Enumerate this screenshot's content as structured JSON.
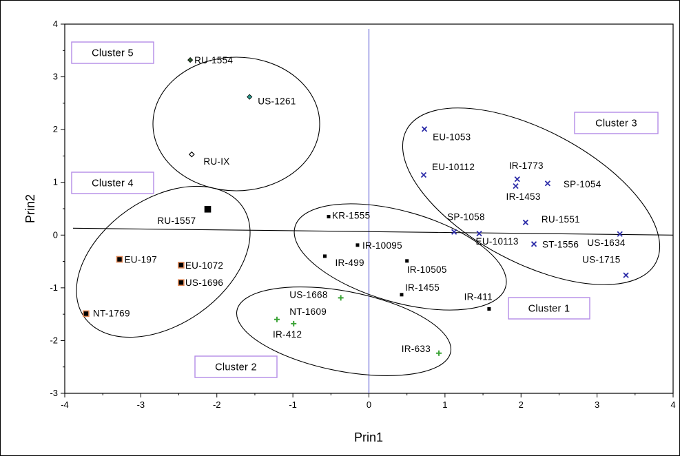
{
  "chart_data": {
    "type": "scatter",
    "title": "",
    "xlabel": "Prin1",
    "ylabel": "Prin2",
    "xlim": [
      -4,
      4
    ],
    "ylim": [
      -3,
      4
    ],
    "xticks": [
      "-4",
      "-3",
      "-2",
      "-1",
      "0",
      "1",
      "2",
      "3",
      "4"
    ],
    "yticks": [
      "-3",
      "-2",
      "-1",
      "0",
      "1",
      "2",
      "3",
      "4"
    ],
    "grid": false,
    "points": [
      {
        "label": "RU-1554",
        "x": -2.35,
        "y": 3.32,
        "marker": "diamond",
        "color": "#2e5e2e"
      },
      {
        "label": "US-1261",
        "x": -1.57,
        "y": 2.62,
        "marker": "diamond",
        "color": "#2a9d8f"
      },
      {
        "label": "RU-IX",
        "x": -2.33,
        "y": 1.53,
        "marker": "diamond-open",
        "color": "#000000"
      },
      {
        "label": "RU-1557",
        "x": -2.12,
        "y": 0.49,
        "marker": "square",
        "color": "#000000"
      },
      {
        "label": "EU-197",
        "x": -3.28,
        "y": -0.46,
        "marker": "square",
        "color": "#e08a5a"
      },
      {
        "label": "EU-1072",
        "x": -2.47,
        "y": -0.57,
        "marker": "square",
        "color": "#e08a5a"
      },
      {
        "label": "US-1696",
        "x": -2.47,
        "y": -0.9,
        "marker": "square",
        "color": "#e08a5a"
      },
      {
        "label": "NT-1769",
        "x": -3.72,
        "y": -1.49,
        "marker": "square",
        "color": "#e08a5a"
      },
      {
        "label": "KR-1555",
        "x": -0.53,
        "y": 0.35,
        "marker": "small-square",
        "color": "#000000"
      },
      {
        "label": "IR-10095",
        "x": -0.15,
        "y": -0.19,
        "marker": "small-square",
        "color": "#000000"
      },
      {
        "label": "IR-499",
        "x": -0.58,
        "y": -0.4,
        "marker": "small-square",
        "color": "#000000"
      },
      {
        "label": "IR-10505",
        "x": 0.5,
        "y": -0.49,
        "marker": "small-square",
        "color": "#000000"
      },
      {
        "label": "IR-1455",
        "x": 0.43,
        "y": -1.13,
        "marker": "small-square",
        "color": "#000000"
      },
      {
        "label": "IR-411",
        "x": 1.58,
        "y": -1.4,
        "marker": "small-square",
        "color": "#000000"
      },
      {
        "label": "US-1668",
        "x": -0.37,
        "y": -1.19,
        "marker": "plus",
        "color": "#3aa335"
      },
      {
        "label": "NT-1609",
        "x": -0.99,
        "y": -1.68,
        "marker": "plus",
        "color": "#3aa335"
      },
      {
        "label": "IR-412",
        "x": -1.21,
        "y": -1.6,
        "marker": "plus",
        "color": "#3aa335"
      },
      {
        "label": "IR-633",
        "x": 0.92,
        "y": -2.24,
        "marker": "plus",
        "color": "#3aa335"
      },
      {
        "label": "EU-1053",
        "x": 0.73,
        "y": 2.01,
        "marker": "x",
        "color": "#2c2ca8"
      },
      {
        "label": "EU-10112",
        "x": 0.72,
        "y": 1.14,
        "marker": "x",
        "color": "#2c2ca8"
      },
      {
        "label": "IR-1773",
        "x": 1.95,
        "y": 1.06,
        "marker": "x",
        "color": "#2c2ca8"
      },
      {
        "label": "IR-1453",
        "x": 1.93,
        "y": 0.93,
        "marker": "x",
        "color": "#2c2ca8"
      },
      {
        "label": "SP-1054",
        "x": 2.35,
        "y": 0.98,
        "marker": "x",
        "color": "#2c2ca8"
      },
      {
        "label": "SP-1058",
        "x": 1.12,
        "y": 0.06,
        "marker": "x",
        "color": "#2c2ca8"
      },
      {
        "label": "RU-1551",
        "x": 2.06,
        "y": 0.24,
        "marker": "x",
        "color": "#2c2ca8"
      },
      {
        "label": "EU-10113",
        "x": 1.45,
        "y": 0.03,
        "marker": "x",
        "color": "#2c2ca8"
      },
      {
        "label": "ST-1556",
        "x": 2.17,
        "y": -0.17,
        "marker": "x",
        "color": "#2c2ca8"
      },
      {
        "label": "US-1634",
        "x": 3.3,
        "y": 0.02,
        "marker": "x",
        "color": "#2c2ca8"
      },
      {
        "label": "US-1715",
        "x": 3.38,
        "y": -0.76,
        "marker": "x",
        "color": "#2c2ca8"
      }
    ],
    "reference_lines": {
      "vertical_x": 0,
      "near_horizontal_from": [
        -4,
        0.13
      ],
      "near_horizontal_to": [
        4,
        0.0
      ]
    },
    "clusters": [
      {
        "name": "Cluster 5"
      },
      {
        "name": "Cluster 4"
      },
      {
        "name": "Cluster 3"
      },
      {
        "name": "Cluster 1"
      },
      {
        "name": "Cluster 2"
      }
    ]
  }
}
